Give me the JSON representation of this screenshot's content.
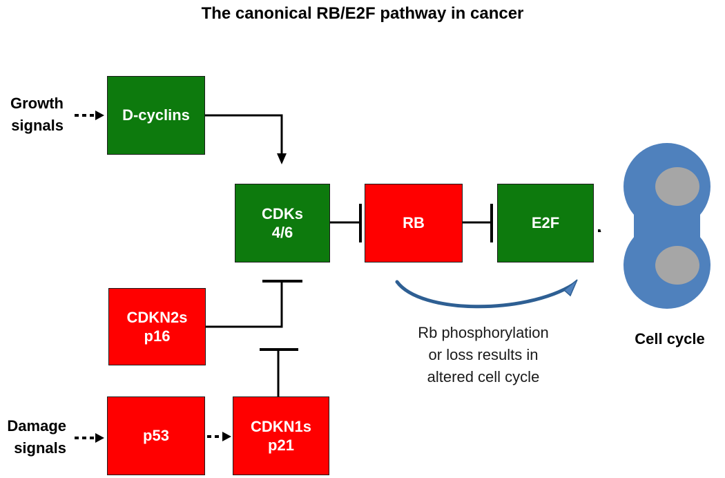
{
  "title": "The canonical RB/E2F pathway in cancer",
  "inputs": {
    "growth": [
      "Growth",
      "signals"
    ],
    "damage": [
      "Damage",
      "signals"
    ]
  },
  "nodes": {
    "dcyclins": {
      "lines": [
        "D-cyclins"
      ],
      "type": "promoter"
    },
    "cdks": {
      "lines": [
        "CDKs",
        "4/6"
      ],
      "type": "promoter"
    },
    "rb": {
      "lines": [
        "RB"
      ],
      "type": "suppressor"
    },
    "e2f": {
      "lines": [
        "E2F"
      ],
      "type": "promoter"
    },
    "cdkn2s": {
      "lines": [
        "CDKN2s",
        "p16"
      ],
      "type": "suppressor"
    },
    "p53": {
      "lines": [
        "p53"
      ],
      "type": "suppressor"
    },
    "cdkn1s": {
      "lines": [
        "CDKN1s",
        "p21"
      ],
      "type": "suppressor"
    }
  },
  "edges": [
    {
      "from": "growth-signals",
      "to": "dcyclins",
      "kind": "dotted-arrow"
    },
    {
      "from": "dcyclins",
      "to": "cdks",
      "kind": "activation"
    },
    {
      "from": "cdks",
      "to": "rb",
      "kind": "inhibition"
    },
    {
      "from": "rb",
      "to": "e2f",
      "kind": "inhibition"
    },
    {
      "from": "e2f",
      "to": "cell-cycle",
      "kind": "dotted-arrow"
    },
    {
      "from": "cdkn2s",
      "to": "cdks",
      "kind": "inhibition"
    },
    {
      "from": "cdkn1s",
      "to": "cdks",
      "kind": "inhibition"
    },
    {
      "from": "damage-signals",
      "to": "p53",
      "kind": "dotted-arrow"
    },
    {
      "from": "p53",
      "to": "cdkn1s",
      "kind": "dotted-arrow"
    }
  ],
  "caption": [
    "Rb phosphorylation",
    "or loss results in",
    "altered cell cycle"
  ],
  "cell_cycle": {
    "label": "Cell cycle"
  },
  "colors": {
    "promoter": "#0d7a0d",
    "suppressor": "#ff0000",
    "cell": "#4f81bd",
    "nucleus": "#a6a6a6",
    "line": "#000000"
  }
}
